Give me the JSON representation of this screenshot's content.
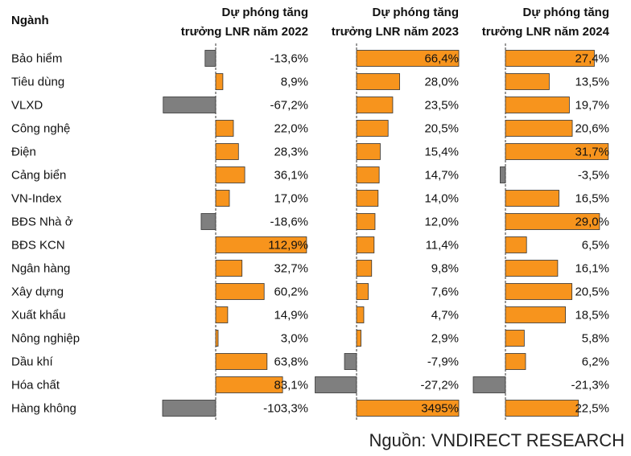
{
  "chart_data": {
    "type": "bar",
    "orientation": "horizontal",
    "category_header": "Ngành",
    "categories": [
      "Bảo hiểm",
      "Tiêu dùng",
      "VLXD",
      "Công nghệ",
      "Điện",
      "Cảng biển",
      "VN-Index",
      "BĐS Nhà ở",
      "BĐS KCN",
      "Ngân hàng",
      "Xây dựng",
      "Xuất khẩu",
      "Nông nghiệp",
      "Dầu khí",
      "Hóa chất",
      "Hàng không"
    ],
    "series": [
      {
        "header_line1": "Dự phóng tăng",
        "header_line2": "trưởng LNR năm 2022",
        "values": [
          -13.6,
          8.9,
          -67.2,
          22.0,
          28.3,
          36.1,
          17.0,
          -18.6,
          112.9,
          32.7,
          60.2,
          14.9,
          3.0,
          63.8,
          83.1,
          -103.3
        ],
        "labels": [
          "-13,6%",
          "8,9%",
          "-67,2%",
          "22,0%",
          "28,3%",
          "36,1%",
          "17,0%",
          "-18,6%",
          "112,9%",
          "32,7%",
          "60,2%",
          "14,9%",
          "3,0%",
          "63,8%",
          "83,1%",
          "-103,3%"
        ],
        "display_range": [
          -68,
          115
        ]
      },
      {
        "header_line1": "Dự phóng tăng",
        "header_line2": "trưởng LNR năm 2023",
        "values": [
          66.4,
          28.0,
          23.5,
          20.5,
          15.4,
          14.7,
          14.0,
          12.0,
          11.4,
          9.8,
          7.6,
          4.7,
          2.9,
          -7.9,
          -27.2,
          3495
        ],
        "labels": [
          "66,4%",
          "28,0%",
          "23,5%",
          "20,5%",
          "15,4%",
          "14,7%",
          "14,0%",
          "12,0%",
          "11,4%",
          "9,8%",
          "7,6%",
          "4,7%",
          "2,9%",
          "-7,9%",
          "-27,2%",
          "3495%"
        ],
        "display_range": [
          -28,
          66.4
        ]
      },
      {
        "header_line1": "Dự phóng tăng",
        "header_line2": "trưởng LNR năm 2024",
        "values": [
          27.4,
          13.5,
          19.7,
          20.6,
          31.7,
          -3.5,
          16.5,
          29.0,
          6.5,
          16.1,
          20.5,
          18.5,
          5.8,
          6.2,
          -21.3,
          22.5
        ],
        "labels": [
          "27,4%",
          "13,5%",
          "19,7%",
          "20,6%",
          "31,7%",
          "-3,5%",
          "16,5%",
          "29,0%",
          "6,5%",
          "16,1%",
          "20,5%",
          "18,5%",
          "5,8%",
          "6,2%",
          "-21,3%",
          "22,5%"
        ],
        "display_range": [
          -21.3,
          32
        ]
      }
    ],
    "colors": {
      "positive": "#F7941D",
      "negative": "#7F7F7F",
      "border": "#333333",
      "axis": "#333333"
    },
    "axis_style": "dashed-zero-line",
    "grid": false,
    "legend": "none"
  },
  "source_text": "Nguồn: VNDIRECT RESEARCH"
}
